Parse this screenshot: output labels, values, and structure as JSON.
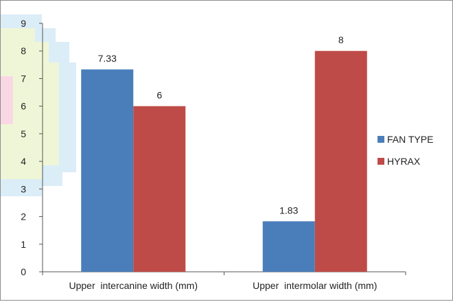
{
  "chart_data": {
    "type": "bar",
    "categories": [
      "Upper  intercanine width (mm)",
      "Upper  intermolar width (mm)"
    ],
    "series": [
      {
        "name": "FAN TYPE",
        "values": [
          7.33,
          1.83
        ],
        "labels": [
          "7.33",
          "1.83"
        ],
        "color": "#4a7ebb"
      },
      {
        "name": "HYRAX",
        "values": [
          6,
          8
        ],
        "labels": [
          "6",
          "8"
        ],
        "color": "#be4b48"
      }
    ],
    "ylim": [
      0,
      9
    ],
    "yticks": [
      "0",
      "1",
      "2",
      "3",
      "4",
      "5",
      "6",
      "7",
      "8",
      "9"
    ],
    "grid": false,
    "legend": "right",
    "title": "",
    "xlabel": "",
    "ylabel": ""
  }
}
